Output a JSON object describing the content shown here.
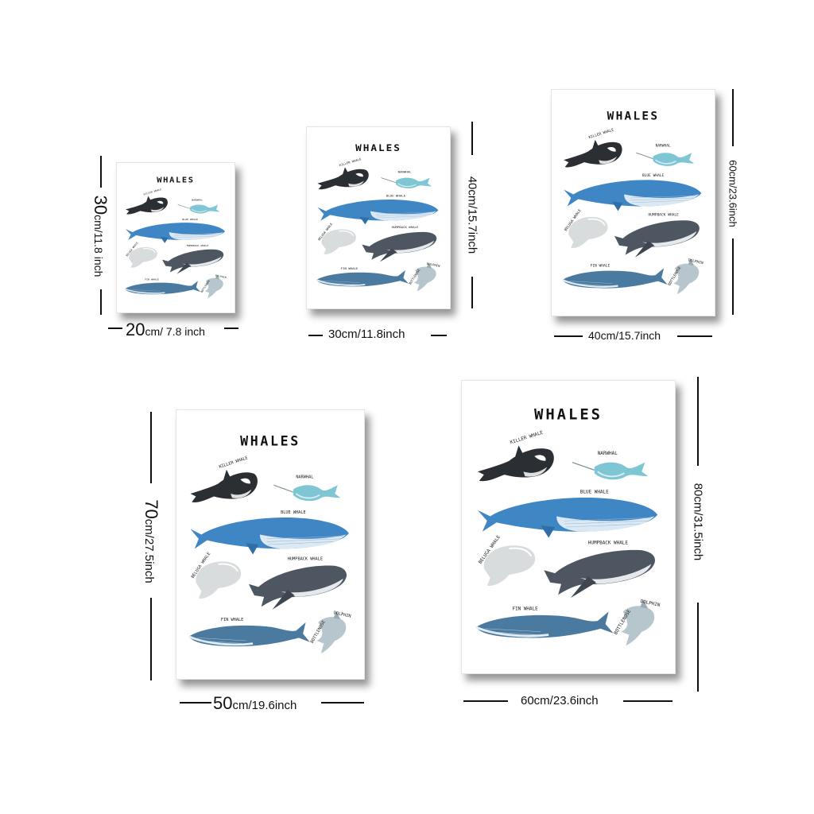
{
  "poster": {
    "title": "WHALES",
    "labels": {
      "killer": "KILLER WHALE",
      "narwhal": "NARWHAL",
      "blue": "BLUE WHALE",
      "beluga": "BELUGA WHALE",
      "humpback": "HUMPBACK WHALE",
      "fin": "FIN WHALE",
      "bottlenose": "BOTTLENOSE",
      "dolphin": "DOLPHIN"
    }
  },
  "sizes": [
    {
      "width_num": "20",
      "width_text": "cm/ 7.8 inch",
      "height_num": "30",
      "height_text": "cm/11.8 inch"
    },
    {
      "width_num": "",
      "width_text": "30cm/11.8inch",
      "height_num": "",
      "height_text": "40cm/15.7inch"
    },
    {
      "width_num": "",
      "width_text": "40cm/15.7inch",
      "height_num": "",
      "height_text": "60cm/23.6inch"
    },
    {
      "width_num": "50",
      "width_text": "cm/19.6inch",
      "height_num": "70",
      "height_text": "cm/27.5inch"
    },
    {
      "width_num": "",
      "width_text": "60cm/23.6inch",
      "height_num": "",
      "height_text": "80cm/31.5inch"
    }
  ],
  "colors": {
    "orca": "#2b2f33",
    "narwhal": "#7fc6d4",
    "blue_whale": "#3f86c4",
    "beluga": "#d9dcdd",
    "humpback": "#4d5661",
    "fin_whale": "#4a7aa0",
    "dolphin": "#b7c6cc"
  }
}
